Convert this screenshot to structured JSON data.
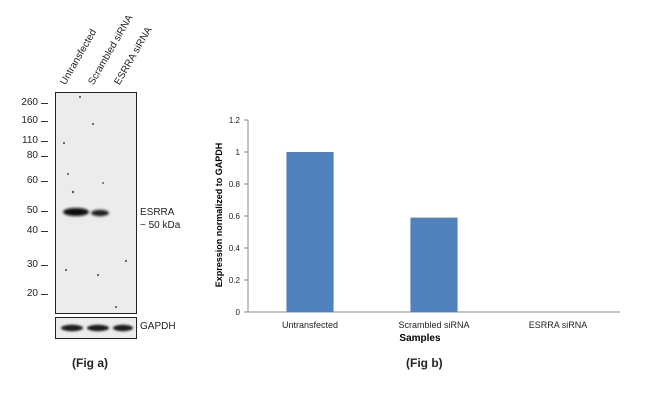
{
  "fig_a": {
    "lane_labels": [
      "Untransfected",
      "Scrambled siRNA",
      "ESRRA siRNA"
    ],
    "mw_markers": [
      "260",
      "160",
      "110",
      "80",
      "60",
      "50",
      "40",
      "30",
      "20"
    ],
    "band_label_line1": "ESRRA",
    "band_label_line2": "~ 50 kDa",
    "loading_control_label": "GAPDH",
    "caption": "(Fig a)"
  },
  "fig_b": {
    "caption": "(Fig b)"
  },
  "chart_data": {
    "type": "bar",
    "categories": [
      "Untransfected",
      "Scrambled siRNA",
      "ESRRA siRNA"
    ],
    "values": [
      1.0,
      0.59,
      0.0
    ],
    "title": "",
    "xlabel": "Samples",
    "ylabel": "Expression normalized to GAPDH",
    "ylim": [
      0,
      1.2
    ],
    "yticks": [
      "0",
      "0.2",
      "0.4",
      "0.6",
      "0.8",
      "1",
      "1.2"
    ],
    "bar_color": "#4f81bd",
    "grid": false
  }
}
